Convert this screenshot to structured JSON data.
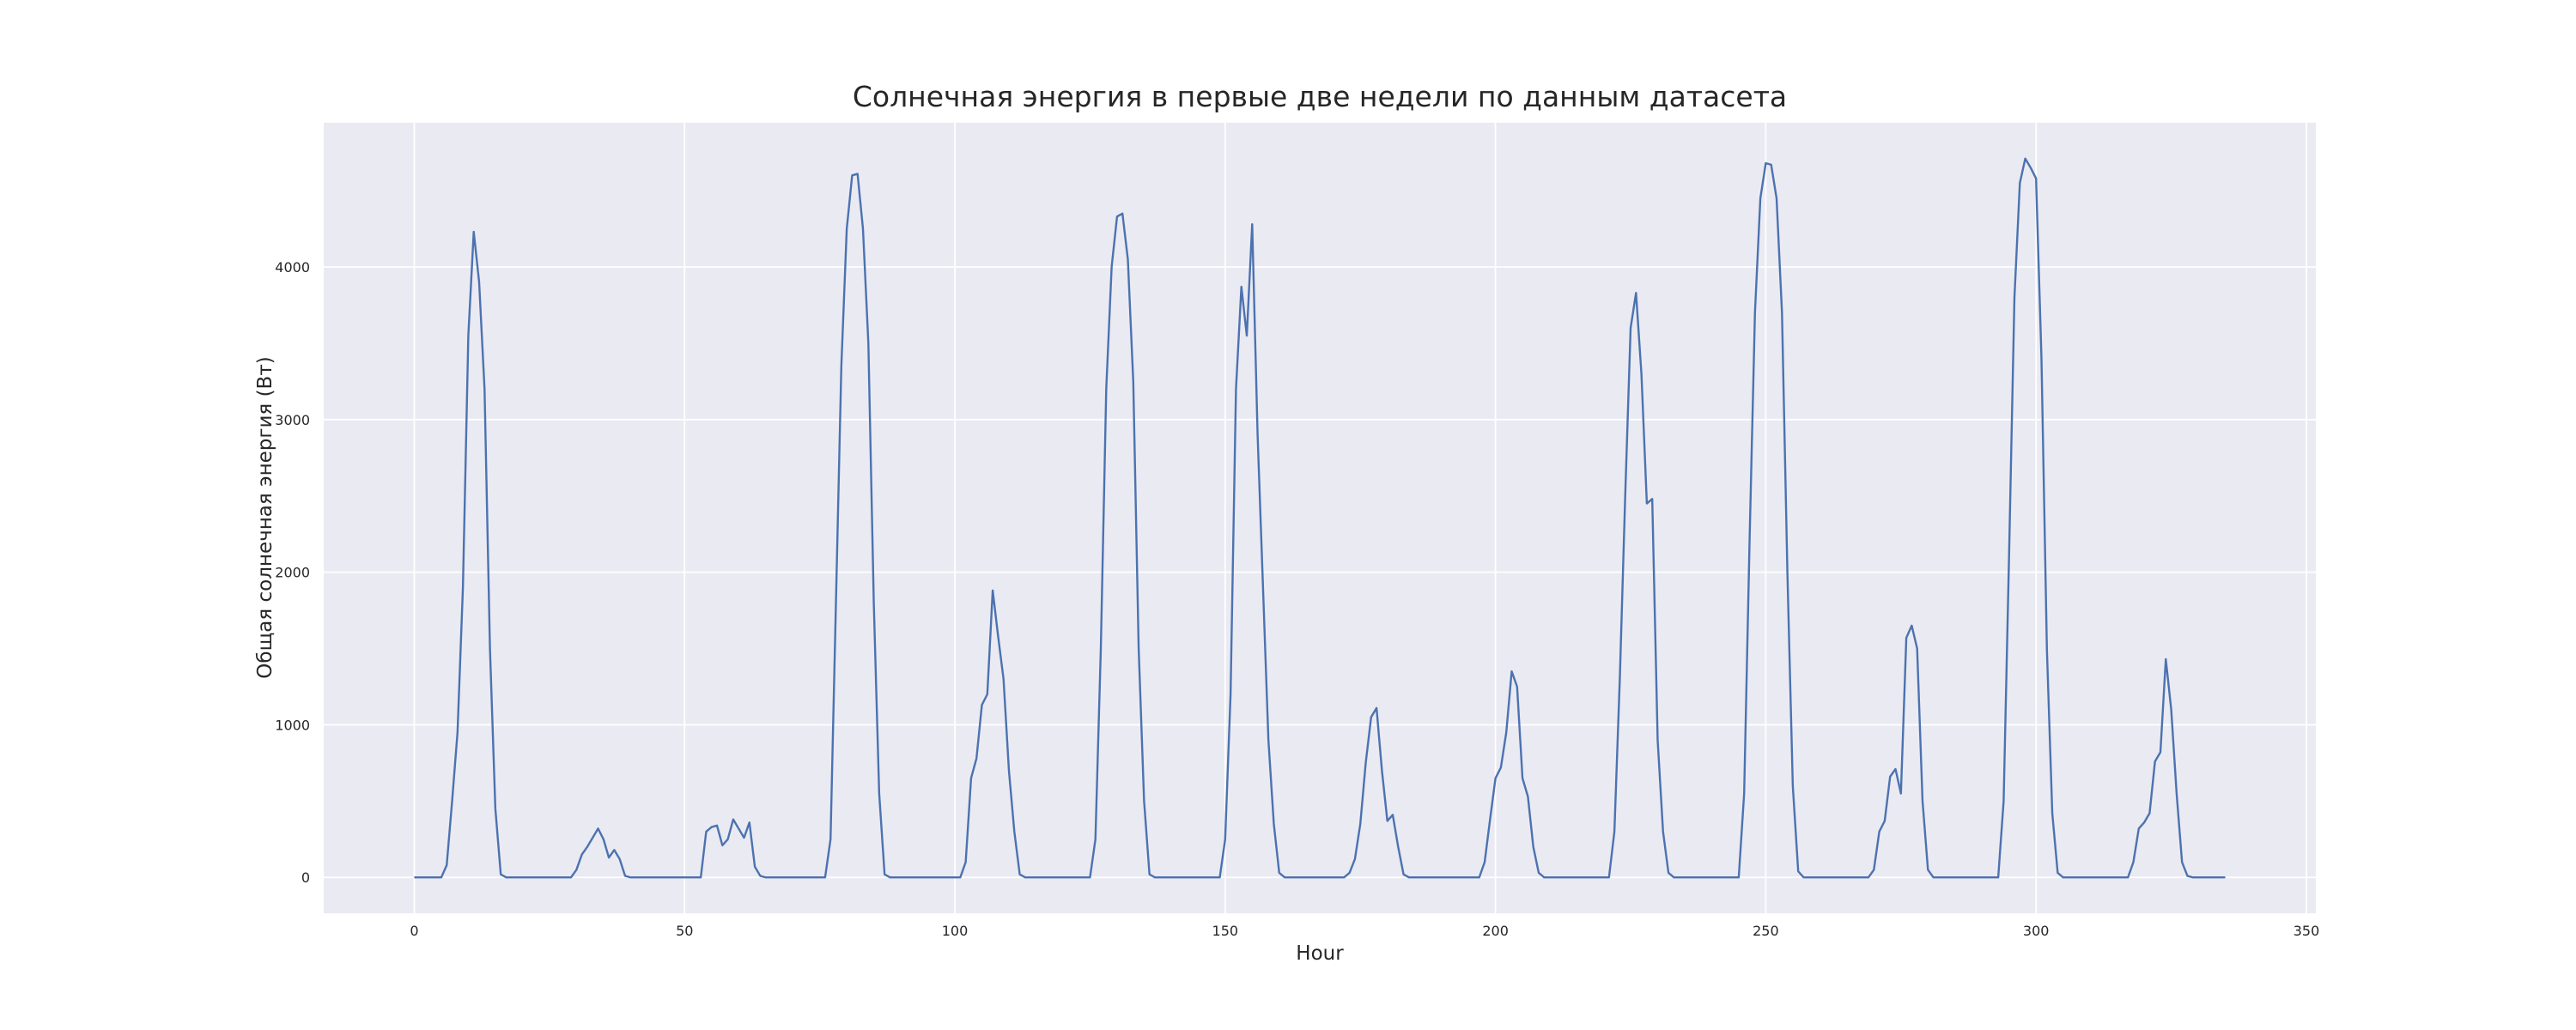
{
  "chart_data": {
    "type": "line",
    "title": "Солнечная энергия в первые две недели по данным датасета",
    "xlabel": "Hour",
    "ylabel": "Общая солнечная энергия (Вт)",
    "color": "#4c72b0",
    "grid": true,
    "xlim": [
      -16.75,
      351.75
    ],
    "ylim": [
      -235,
      4945
    ],
    "xticks": [
      0,
      50,
      100,
      150,
      200,
      250,
      300,
      350
    ],
    "yticks": [
      0,
      1000,
      2000,
      3000,
      4000
    ],
    "x": [
      0,
      1,
      2,
      3,
      4,
      5,
      6,
      7,
      8,
      9,
      10,
      11,
      12,
      13,
      14,
      15,
      16,
      17,
      18,
      19,
      20,
      21,
      22,
      23,
      24,
      25,
      26,
      27,
      28,
      29,
      30,
      31,
      32,
      33,
      34,
      35,
      36,
      37,
      38,
      39,
      40,
      41,
      42,
      43,
      44,
      45,
      46,
      47,
      48,
      49,
      50,
      51,
      52,
      53,
      54,
      55,
      56,
      57,
      58,
      59,
      60,
      61,
      62,
      63,
      64,
      65,
      66,
      67,
      68,
      69,
      70,
      71,
      72,
      73,
      74,
      75,
      76,
      77,
      78,
      79,
      80,
      81,
      82,
      83,
      84,
      85,
      86,
      87,
      88,
      89,
      90,
      91,
      92,
      93,
      94,
      95,
      96,
      97,
      98,
      99,
      100,
      101,
      102,
      103,
      104,
      105,
      106,
      107,
      108,
      109,
      110,
      111,
      112,
      113,
      114,
      115,
      116,
      117,
      118,
      119,
      120,
      121,
      122,
      123,
      124,
      125,
      126,
      127,
      128,
      129,
      130,
      131,
      132,
      133,
      134,
      135,
      136,
      137,
      138,
      139,
      140,
      141,
      142,
      143,
      144,
      145,
      146,
      147,
      148,
      149,
      150,
      151,
      152,
      153,
      154,
      155,
      156,
      157,
      158,
      159,
      160,
      161,
      162,
      163,
      164,
      165,
      166,
      167,
      168,
      169,
      170,
      171,
      172,
      173,
      174,
      175,
      176,
      177,
      178,
      179,
      180,
      181,
      182,
      183,
      184,
      185,
      186,
      187,
      188,
      189,
      190,
      191,
      192,
      193,
      194,
      195,
      196,
      197,
      198,
      199,
      200,
      201,
      202,
      203,
      204,
      205,
      206,
      207,
      208,
      209,
      210,
      211,
      212,
      213,
      214,
      215,
      216,
      217,
      218,
      219,
      220,
      221,
      222,
      223,
      224,
      225,
      226,
      227,
      228,
      229,
      230,
      231,
      232,
      233,
      234,
      235,
      236,
      237,
      238,
      239,
      240,
      241,
      242,
      243,
      244,
      245,
      246,
      247,
      248,
      249,
      250,
      251,
      252,
      253,
      254,
      255,
      256,
      257,
      258,
      259,
      260,
      261,
      262,
      263,
      264,
      265,
      266,
      267,
      268,
      269,
      270,
      271,
      272,
      273,
      274,
      275,
      276,
      277,
      278,
      279,
      280,
      281,
      282,
      283,
      284,
      285,
      286,
      287,
      288,
      289,
      290,
      291,
      292,
      293,
      294,
      295,
      296,
      297,
      298,
      299,
      300,
      301,
      302,
      303,
      304,
      305,
      306,
      307,
      308,
      309,
      310,
      311,
      312,
      313,
      314,
      315,
      316,
      317,
      318,
      319,
      320,
      321,
      322,
      323,
      324,
      325,
      326,
      327,
      328,
      329,
      330,
      331,
      332,
      333,
      334,
      335
    ],
    "values": [
      0,
      0,
      0,
      0,
      0,
      0,
      80,
      500,
      950,
      1900,
      3550,
      4230,
      3900,
      3200,
      1500,
      450,
      20,
      0,
      0,
      0,
      0,
      0,
      0,
      0,
      0,
      0,
      0,
      0,
      0,
      0,
      50,
      150,
      200,
      260,
      320,
      250,
      130,
      180,
      120,
      10,
      0,
      0,
      0,
      0,
      0,
      0,
      0,
      0,
      0,
      0,
      0,
      0,
      0,
      0,
      300,
      330,
      340,
      210,
      250,
      380,
      320,
      260,
      360,
      70,
      10,
      0,
      0,
      0,
      0,
      0,
      0,
      0,
      0,
      0,
      0,
      0,
      0,
      250,
      1800,
      3350,
      4250,
      4600,
      4610,
      4250,
      3500,
      1800,
      550,
      20,
      0,
      0,
      0,
      0,
      0,
      0,
      0,
      0,
      0,
      0,
      0,
      0,
      0,
      0,
      100,
      650,
      780,
      1130,
      1200,
      1880,
      1580,
      1300,
      700,
      300,
      20,
      0,
      0,
      0,
      0,
      0,
      0,
      0,
      0,
      0,
      0,
      0,
      0,
      0,
      250,
      1500,
      3200,
      4000,
      4330,
      4350,
      4050,
      3250,
      1500,
      500,
      20,
      0,
      0,
      0,
      0,
      0,
      0,
      0,
      0,
      0,
      0,
      0,
      0,
      0,
      250,
      1200,
      3200,
      3870,
      3550,
      4280,
      2900,
      1900,
      900,
      350,
      30,
      0,
      0,
      0,
      0,
      0,
      0,
      0,
      0,
      0,
      0,
      0,
      0,
      30,
      120,
      350,
      750,
      1050,
      1110,
      700,
      370,
      410,
      200,
      20,
      0,
      0,
      0,
      0,
      0,
      0,
      0,
      0,
      0,
      0,
      0,
      0,
      0,
      0,
      100,
      380,
      650,
      720,
      950,
      1350,
      1250,
      650,
      530,
      200,
      30,
      0,
      0,
      0,
      0,
      0,
      0,
      0,
      0,
      0,
      0,
      0,
      0,
      0,
      300,
      1300,
      2500,
      3600,
      3830,
      3300,
      2450,
      2480,
      900,
      300,
      30,
      0,
      0,
      0,
      0,
      0,
      0,
      0,
      0,
      0,
      0,
      0,
      0,
      0,
      550,
      2200,
      3700,
      4450,
      4680,
      4670,
      4450,
      3700,
      2000,
      600,
      40,
      0,
      0,
      0,
      0,
      0,
      0,
      0,
      0,
      0,
      0,
      0,
      0,
      0,
      50,
      300,
      370,
      660,
      710,
      550,
      1570,
      1650,
      1500,
      500,
      50,
      0,
      0,
      0,
      0,
      0,
      0,
      0,
      0,
      0,
      0,
      0,
      0,
      0,
      500,
      2100,
      3800,
      4550,
      4710,
      4650,
      4580,
      3400,
      1500,
      420,
      30,
      0,
      0,
      0,
      0,
      0,
      0,
      0,
      0,
      0,
      0,
      0,
      0,
      0,
      100,
      320,
      360,
      420,
      760,
      820,
      1430,
      1100,
      550,
      100,
      10,
      0,
      0,
      0,
      0,
      0,
      0,
      0
    ]
  }
}
